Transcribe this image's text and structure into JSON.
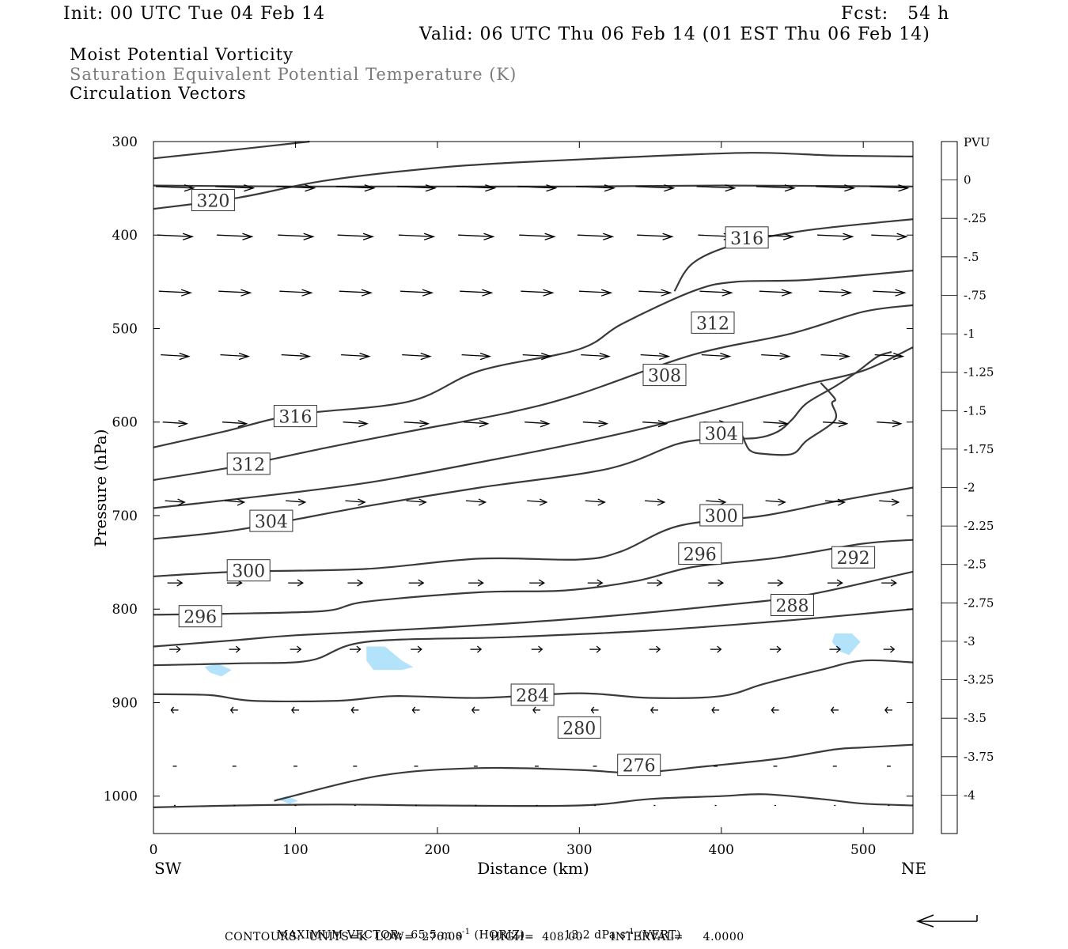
{
  "header": {
    "init": "Init: 00 UTC Tue 04 Feb 14",
    "fcst": "Fcst:   54 h",
    "valid": "Valid: 06 UTC Thu 06 Feb 14 (01 EST Thu 06 Feb 14)",
    "fields": [
      "Moist Potential Vorticity",
      "Saturation Equivalent Potential Temperature (K)",
      "Circulation Vectors"
    ]
  },
  "footer": {
    "max_vector_label": "MAXIMUM VECTOR:",
    "horiz": "65.5 m s",
    "horiz_exp": "-1",
    "horiz_tag": "(HORIZ)",
    "vert": "13.2 dPa s",
    "vert_exp": "-1",
    "vert_tag": "(VERT)",
    "contours_line": "CONTOURS:  UNITS=K  LOW=  276.00       HIGH=  408.00       INTERVAL=     4.0000"
  },
  "colors": {
    "contour": "#3a3a3a",
    "shade": "#b3e2fb",
    "frame": "#000000",
    "grey_text": "#7a7a7a"
  },
  "chart_data": {
    "type": "line",
    "x_label": "Distance (km)",
    "y_label": "Pressure (hPa)",
    "x_range": [
      0,
      535
    ],
    "y_range": [
      1040,
      300
    ],
    "x_ticks": [
      0,
      100,
      200,
      300,
      400,
      500
    ],
    "y_ticks": [
      300,
      400,
      500,
      600,
      700,
      800,
      900,
      1000
    ],
    "left_end_label": "SW",
    "right_end_label": "NE",
    "contour_labels": [
      {
        "value": "320",
        "x": 42,
        "p": 363
      },
      {
        "value": "316",
        "x": 418,
        "p": 403
      },
      {
        "value": "312",
        "x": 394,
        "p": 494
      },
      {
        "value": "308",
        "x": 360,
        "p": 550
      },
      {
        "value": "316",
        "x": 100,
        "p": 594
      },
      {
        "value": "304",
        "x": 400,
        "p": 612
      },
      {
        "value": "312",
        "x": 67,
        "p": 645
      },
      {
        "value": "304",
        "x": 83,
        "p": 706
      },
      {
        "value": "300",
        "x": 400,
        "p": 700
      },
      {
        "value": "296",
        "x": 385,
        "p": 741
      },
      {
        "value": "292",
        "x": 493,
        "p": 745
      },
      {
        "value": "300",
        "x": 67,
        "p": 759
      },
      {
        "value": "288",
        "x": 450,
        "p": 796
      },
      {
        "value": "296",
        "x": 33,
        "p": 808
      },
      {
        "value": "284",
        "x": 267,
        "p": 892
      },
      {
        "value": "280",
        "x": 300,
        "p": 927
      },
      {
        "value": "276",
        "x": 342,
        "p": 967
      }
    ],
    "theta_e_contours": [
      {
        "pts": [
          [
            0,
            318
          ],
          [
            50,
            310
          ],
          [
            110,
            300
          ]
        ]
      },
      {
        "pts": [
          [
            0,
            372
          ],
          [
            60,
            360
          ],
          [
            120,
            342
          ],
          [
            200,
            328
          ],
          [
            260,
            322
          ],
          [
            330,
            317
          ],
          [
            420,
            312
          ],
          [
            480,
            315
          ],
          [
            535,
            316
          ]
        ]
      },
      {
        "pts": [
          [
            0,
            347
          ],
          [
            100,
            348
          ],
          [
            200,
            348
          ],
          [
            300,
            348
          ],
          [
            400,
            347
          ],
          [
            535,
            348
          ]
        ]
      },
      {
        "pts": [
          [
            367,
            460
          ],
          [
            380,
            430
          ],
          [
            410,
            410
          ],
          [
            460,
            395
          ],
          [
            535,
            383
          ]
        ]
      },
      {
        "pts": [
          [
            0,
            627
          ],
          [
            50,
            610
          ],
          [
            100,
            592
          ],
          [
            180,
            578
          ],
          [
            230,
            545
          ],
          [
            300,
            522
          ],
          [
            330,
            495
          ],
          [
            380,
            460
          ],
          [
            410,
            450
          ],
          [
            460,
            448
          ],
          [
            535,
            438
          ]
        ]
      },
      {
        "pts": [
          [
            0,
            662
          ],
          [
            60,
            647
          ],
          [
            120,
            628
          ],
          [
            180,
            610
          ],
          [
            250,
            590
          ],
          [
            300,
            570
          ],
          [
            380,
            528
          ],
          [
            450,
            505
          ],
          [
            500,
            482
          ],
          [
            535,
            475
          ]
        ]
      },
      {
        "pts": [
          [
            0,
            692
          ],
          [
            60,
            682
          ],
          [
            150,
            665
          ],
          [
            240,
            640
          ],
          [
            300,
            622
          ],
          [
            350,
            605
          ],
          [
            400,
            585
          ],
          [
            460,
            560
          ],
          [
            500,
            545
          ],
          [
            535,
            520
          ]
        ]
      },
      {
        "pts": [
          [
            0,
            725
          ],
          [
            60,
            715
          ],
          [
            150,
            690
          ],
          [
            230,
            670
          ],
          [
            320,
            650
          ],
          [
            370,
            623
          ],
          [
            400,
            618
          ],
          [
            425,
            617
          ],
          [
            440,
            610
          ],
          [
            450,
            597
          ],
          [
            460,
            580
          ],
          [
            480,
            562
          ],
          [
            495,
            547
          ],
          [
            510,
            530
          ],
          [
            520,
            525
          ]
        ]
      },
      {
        "pts": [
          [
            415,
            615
          ],
          [
            420,
            630
          ],
          [
            430,
            634
          ],
          [
            450,
            634
          ],
          [
            460,
            620
          ],
          [
            480,
            598
          ],
          [
            478,
            580
          ],
          [
            480,
            575
          ],
          [
            470,
            558
          ]
        ]
      },
      {
        "pts": [
          [
            0,
            765
          ],
          [
            60,
            760
          ],
          [
            150,
            757
          ],
          [
            230,
            746
          ],
          [
            300,
            747
          ],
          [
            330,
            738
          ],
          [
            370,
            711
          ],
          [
            430,
            700
          ],
          [
            480,
            685
          ],
          [
            535,
            670
          ]
        ]
      },
      {
        "pts": [
          [
            0,
            806
          ],
          [
            50,
            805
          ],
          [
            120,
            802
          ],
          [
            150,
            792
          ],
          [
            230,
            782
          ],
          [
            290,
            780
          ],
          [
            340,
            770
          ],
          [
            380,
            755
          ],
          [
            440,
            745
          ],
          [
            500,
            730
          ],
          [
            535,
            726
          ]
        ]
      },
      {
        "pts": [
          [
            0,
            840
          ],
          [
            60,
            833
          ],
          [
            100,
            828
          ],
          [
            200,
            820
          ],
          [
            300,
            810
          ],
          [
            400,
            796
          ],
          [
            460,
            785
          ],
          [
            535,
            760
          ]
        ]
      },
      {
        "pts": [
          [
            0,
            860
          ],
          [
            60,
            858
          ],
          [
            110,
            855
          ],
          [
            150,
            835
          ],
          [
            250,
            830
          ],
          [
            350,
            823
          ],
          [
            440,
            813
          ],
          [
            500,
            805
          ],
          [
            535,
            800
          ]
        ]
      },
      {
        "pts": [
          [
            0,
            891
          ],
          [
            40,
            892
          ],
          [
            70,
            898
          ],
          [
            130,
            898
          ],
          [
            170,
            893
          ],
          [
            230,
            895
          ],
          [
            300,
            890
          ],
          [
            350,
            895
          ],
          [
            400,
            893
          ],
          [
            430,
            880
          ],
          [
            470,
            865
          ],
          [
            500,
            855
          ],
          [
            535,
            857
          ]
        ]
      },
      {
        "pts": [
          [
            0,
            1012
          ],
          [
            60,
            1010
          ],
          [
            130,
            1009
          ],
          [
            200,
            1010
          ],
          [
            300,
            1010
          ],
          [
            350,
            1003
          ],
          [
            400,
            1000
          ],
          [
            430,
            998
          ],
          [
            470,
            1003
          ],
          [
            500,
            1008
          ],
          [
            535,
            1010
          ]
        ]
      },
      {
        "pts": [
          [
            85,
            1005
          ],
          [
            160,
            978
          ],
          [
            230,
            970
          ],
          [
            300,
            972
          ],
          [
            340,
            975
          ],
          [
            390,
            968
          ],
          [
            440,
            960
          ],
          [
            480,
            950
          ],
          [
            500,
            948
          ],
          [
            535,
            945
          ]
        ]
      }
    ],
    "shaded_regions": [
      {
        "pts": [
          [
            150,
            840
          ],
          [
            163,
            840
          ],
          [
            175,
            855
          ],
          [
            183,
            862
          ],
          [
            175,
            865
          ],
          [
            155,
            865
          ],
          [
            150,
            855
          ]
        ]
      },
      {
        "pts": [
          [
            36,
            862
          ],
          [
            45,
            858
          ],
          [
            55,
            865
          ],
          [
            48,
            872
          ],
          [
            40,
            868
          ]
        ]
      },
      {
        "pts": [
          [
            480,
            826
          ],
          [
            492,
            826
          ],
          [
            498,
            835
          ],
          [
            490,
            849
          ],
          [
            483,
            845
          ],
          [
            478,
            835
          ]
        ]
      },
      {
        "pts": [
          [
            86,
            1003
          ],
          [
            94,
            1000
          ],
          [
            102,
            1005
          ],
          [
            96,
            1008
          ]
        ]
      }
    ],
    "circulation_vectors": [
      {
        "rows_p": [
          348,
          400,
          460,
          528,
          600,
          684,
          772,
          843,
          908,
          968,
          1010
        ]
      },
      {
        "rows_x": [
          15,
          57,
          100,
          142,
          185,
          227,
          270,
          311,
          353,
          396,
          438,
          480,
          518
        ]
      }
    ],
    "colorbar": {
      "label": "PVU",
      "tick_labels": [
        "0",
        "-.25",
        "-.5",
        "-.75",
        "-1",
        "-1.25",
        "-1.5",
        "-1.75",
        "-2",
        "-2.25",
        "-2.5",
        "-2.75",
        "-3",
        "-3.25",
        "-3.5",
        "-3.75",
        "-4"
      ],
      "fill_colors": [
        "#ffffff",
        "#ffffff",
        "#b3e2fb",
        "#abd5fb",
        "#a3c9fb",
        "#9bbcfb",
        "#93b0fb",
        "#8aa3fb",
        "#8296fb",
        "#7a8afb",
        "#727dfb",
        "#6a70fb",
        "#6264fb",
        "#4a4bfb",
        "#3132fb",
        "#1919fb",
        "#0000fb"
      ]
    }
  }
}
